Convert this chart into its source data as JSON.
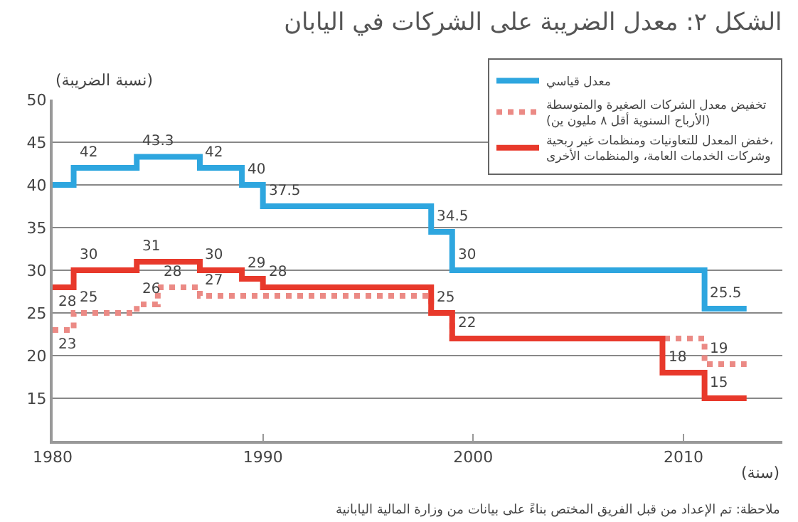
{
  "chart_data": {
    "type": "step",
    "title": "الشكل ٢: معدل الضريبة على الشركات في اليابان",
    "ylabel": "(نسبة الضريبة)",
    "xlabel": "(سنة)",
    "annotations": [
      "ملاحظة: تم الإعداد من قبل الفريق المختص بناءً على بيانات من وزارة المالية اليابانية"
    ],
    "xlim": [
      1980,
      2014.7
    ],
    "xticks": [
      1980,
      1990,
      2000,
      2010
    ],
    "ylim": [
      10,
      50
    ],
    "yticks": [
      15,
      20,
      25,
      30,
      35,
      40,
      45,
      50
    ],
    "grid": "y",
    "legend": "top right",
    "series": [
      {
        "name": "معدل قياسي",
        "color": "#2ea6df",
        "line_style": "solid",
        "x": [
          1980,
          1981,
          1984,
          1987,
          1989,
          1990,
          1998,
          1999,
          2011,
          2013
        ],
        "values": [
          40,
          42,
          43.3,
          42,
          40,
          37.5,
          34.5,
          30,
          25.5,
          25.5
        ],
        "value_labels": [
          null,
          "42",
          "43.3",
          "42",
          "40",
          "37.5",
          "34.5",
          "30",
          "25.5",
          null
        ]
      },
      {
        "name": "تخفيض معدل الشركات الصغيرة والمتوسطة\n(الأرباح السنوية أقل ٨ مليون ين)",
        "color": "#eb8a85",
        "line_style": "dashed",
        "x": [
          1980,
          1981,
          1984,
          1985,
          1987,
          1998,
          1999,
          2011,
          2013
        ],
        "values": [
          23,
          25,
          26,
          28,
          27,
          25,
          22,
          19,
          19
        ],
        "value_labels": [
          "23",
          "25",
          "26",
          "28",
          "27",
          null,
          null,
          "19",
          null
        ]
      },
      {
        "name": "خفض المعدل للتعاونيات ومنظمات غير ربحية،\nوشركات الخدمات العامة، والمنظمات الأخرى",
        "color": "#e8392b",
        "line_style": "solid",
        "x": [
          1980,
          1981,
          1984,
          1987,
          1989,
          1990,
          1998,
          1999,
          2009,
          2011,
          2013
        ],
        "values": [
          28,
          30,
          31,
          30,
          29,
          28,
          25,
          22,
          18,
          15,
          15
        ],
        "value_labels": [
          "28",
          "30",
          "31",
          "30",
          "29",
          "28",
          "25",
          "22",
          "18",
          "15",
          null
        ]
      }
    ]
  }
}
